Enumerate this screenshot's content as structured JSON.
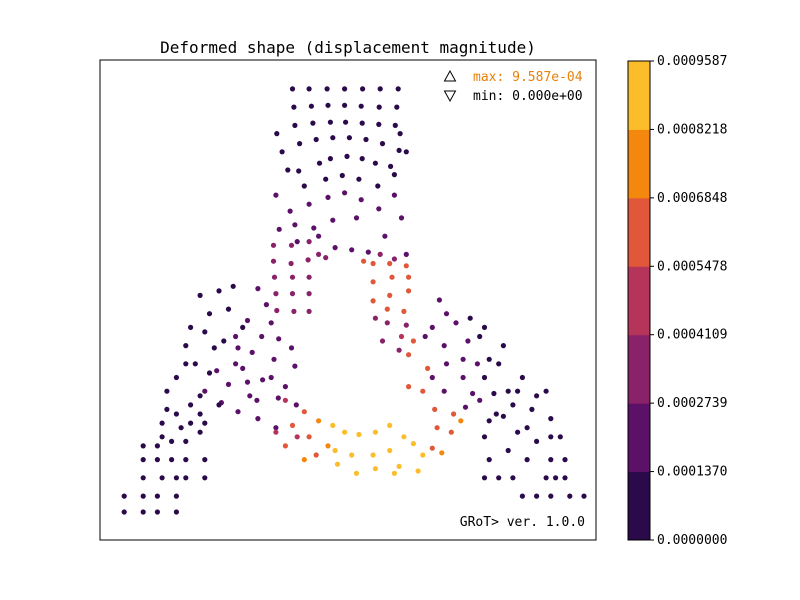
{
  "chart_data": {
    "type": "scatter",
    "title": "Deformed shape (displacement magnitude)",
    "xlabel": "",
    "ylabel": "",
    "xlim": [
      0,
      1
    ],
    "ylim": [
      0,
      1
    ],
    "grid": false,
    "legend": {
      "placement": "top-right",
      "max_label": "max: 9.587e-04",
      "min_label": "min: 0.000e+00",
      "max_marker": "triangle-up",
      "min_marker": "triangle-down",
      "max_color": "#e8800a",
      "min_color": "#000000"
    },
    "annotation": "GRoT> ver. 1.0.0",
    "colorbar": {
      "min": 0.0,
      "max": 0.0009587,
      "tick_labels": [
        "0.0000000",
        "0.0001370",
        "0.0002739",
        "0.0004109",
        "0.0005478",
        "0.0006848",
        "0.0008218",
        "0.0009587"
      ],
      "colors": [
        "#2a0a4a",
        "#5c1169",
        "#8a2269",
        "#b5355a",
        "#e0573a",
        "#f4870e",
        "#fbbd2a"
      ]
    },
    "layers": [
      {
        "mag": 0.0,
        "pts": [
          [
            0.385,
            0.963
          ],
          [
            0.42,
            0.963
          ],
          [
            0.458,
            0.963
          ],
          [
            0.495,
            0.963
          ],
          [
            0.533,
            0.963
          ],
          [
            0.57,
            0.963
          ],
          [
            0.608,
            0.963
          ]
        ]
      },
      {
        "mag": 2e-05,
        "pts": [
          [
            0.388,
            0.923
          ],
          [
            0.425,
            0.925
          ],
          [
            0.46,
            0.927
          ],
          [
            0.495,
            0.927
          ],
          [
            0.53,
            0.925
          ],
          [
            0.568,
            0.923
          ],
          [
            0.605,
            0.923
          ]
        ]
      },
      {
        "mag": 4e-05,
        "pts": [
          [
            0.39,
            0.883
          ],
          [
            0.428,
            0.888
          ],
          [
            0.465,
            0.89
          ],
          [
            0.497,
            0.89
          ],
          [
            0.532,
            0.888
          ],
          [
            0.567,
            0.885
          ],
          [
            0.602,
            0.883
          ]
        ]
      },
      {
        "mag": 7e-05,
        "pts": [
          [
            0.352,
            0.865
          ],
          [
            0.4,
            0.843
          ],
          [
            0.435,
            0.852
          ],
          [
            0.47,
            0.856
          ],
          [
            0.505,
            0.856
          ],
          [
            0.54,
            0.852
          ],
          [
            0.575,
            0.843
          ],
          [
            0.612,
            0.865
          ]
        ]
      },
      {
        "mag": 9e-05,
        "pts": [
          [
            0.61,
            0.828
          ],
          [
            0.363,
            0.825
          ],
          [
            0.398,
            0.783
          ],
          [
            0.442,
            0.8
          ],
          [
            0.465,
            0.81
          ],
          [
            0.5,
            0.815
          ],
          [
            0.532,
            0.81
          ],
          [
            0.56,
            0.8
          ],
          [
            0.592,
            0.793
          ],
          [
            0.625,
            0.825
          ]
        ]
      },
      {
        "mag": 0.00012,
        "pts": [
          [
            0.375,
            0.785
          ],
          [
            0.41,
            0.75
          ],
          [
            0.455,
            0.765
          ],
          [
            0.49,
            0.773
          ],
          [
            0.525,
            0.765
          ],
          [
            0.565,
            0.75
          ],
          [
            0.6,
            0.775
          ]
        ]
      },
      {
        "mag": 0.0002,
        "pts": [
          [
            0.35,
            0.73
          ],
          [
            0.38,
            0.695
          ],
          [
            0.42,
            0.71
          ],
          [
            0.46,
            0.725
          ],
          [
            0.495,
            0.735
          ],
          [
            0.53,
            0.72
          ],
          [
            0.567,
            0.7
          ],
          [
            0.6,
            0.73
          ],
          [
            0.39,
            0.665
          ],
          [
            0.43,
            0.658
          ],
          [
            0.47,
            0.675
          ],
          [
            0.52,
            0.68
          ]
        ]
      },
      {
        "mag": 0.00026,
        "pts": [
          [
            0.357,
            0.655
          ],
          [
            0.395,
            0.628
          ],
          [
            0.44,
            0.64
          ],
          [
            0.475,
            0.615
          ],
          [
            0.51,
            0.61
          ],
          [
            0.545,
            0.605
          ],
          [
            0.58,
            0.64
          ],
          [
            0.615,
            0.68
          ],
          [
            0.625,
            0.6
          ]
        ]
      },
      {
        "mag": 0.0004,
        "pts": [
          [
            0.345,
            0.62
          ],
          [
            0.383,
            0.62
          ],
          [
            0.42,
            0.628
          ],
          [
            0.44,
            0.6
          ],
          [
            0.57,
            0.6
          ],
          [
            0.6,
            0.59
          ],
          [
            0.345,
            0.585
          ],
          [
            0.382,
            0.58
          ],
          [
            0.418,
            0.588
          ],
          [
            0.455,
            0.593
          ],
          [
            0.347,
            0.55
          ],
          [
            0.385,
            0.55
          ],
          [
            0.42,
            0.55
          ],
          [
            0.35,
            0.514
          ],
          [
            0.385,
            0.514
          ],
          [
            0.42,
            0.514
          ],
          [
            0.352,
            0.477
          ],
          [
            0.388,
            0.475
          ],
          [
            0.42,
            0.475
          ]
        ]
      },
      {
        "mag": 0.00057,
        "pts": [
          [
            0.535,
            0.585
          ],
          [
            0.555,
            0.58
          ],
          [
            0.59,
            0.58
          ],
          [
            0.625,
            0.575
          ],
          [
            0.63,
            0.55
          ],
          [
            0.595,
            0.55
          ],
          [
            0.555,
            0.54
          ],
          [
            0.63,
            0.52
          ],
          [
            0.59,
            0.51
          ],
          [
            0.555,
            0.498
          ],
          [
            0.585,
            0.48
          ],
          [
            0.62,
            0.475
          ]
        ]
      },
      {
        "mag": 0.00033,
        "pts": [
          [
            0.585,
            0.45
          ],
          [
            0.625,
            0.445
          ],
          [
            0.56,
            0.46
          ],
          [
            0.61,
            0.39
          ],
          [
            0.575,
            0.41
          ]
        ]
      },
      {
        "mag": 0.00045,
        "pts": [
          [
            0.615,
            0.42
          ]
        ]
      },
      {
        "mag": 0.00022,
        "pts": [
          [
            0.312,
            0.525
          ],
          [
            0.33,
            0.49
          ],
          [
            0.29,
            0.455
          ],
          [
            0.34,
            0.45
          ],
          [
            0.265,
            0.42
          ],
          [
            0.32,
            0.42
          ],
          [
            0.356,
            0.415
          ],
          [
            0.383,
            0.395
          ],
          [
            0.3,
            0.385
          ],
          [
            0.346,
            0.37
          ],
          [
            0.39,
            0.355
          ],
          [
            0.34,
            0.33
          ],
          [
            0.37,
            0.31
          ],
          [
            0.28,
            0.35
          ],
          [
            0.322,
            0.325
          ],
          [
            0.355,
            0.285
          ],
          [
            0.393,
            0.27
          ],
          [
            0.295,
            0.29
          ],
          [
            0.27,
            0.395
          ],
          [
            0.312,
            0.24
          ],
          [
            0.35,
            0.22
          ]
        ]
      },
      {
        "mag": 0.00018,
        "pts": [
          [
            0.265,
            0.36
          ],
          [
            0.225,
            0.345
          ],
          [
            0.25,
            0.315
          ],
          [
            0.29,
            0.32
          ],
          [
            0.235,
            0.275
          ],
          [
            0.27,
            0.255
          ],
          [
            0.2,
            0.3
          ],
          [
            0.31,
            0.28
          ]
        ]
      },
      {
        "mag": 0.00047,
        "pts": [
          [
            0.37,
            0.28
          ],
          [
            0.35,
            0.21
          ],
          [
            0.395,
            0.2
          ]
        ]
      },
      {
        "mag": 0.00062,
        "pts": [
          [
            0.41,
            0.255
          ],
          [
            0.37,
            0.18
          ]
        ]
      },
      {
        "mag": 0.0006,
        "pts": [
          [
            0.385,
            0.225
          ],
          [
            0.42,
            0.2
          ],
          [
            0.435,
            0.16
          ],
          [
            0.725,
            0.25
          ],
          [
            0.72,
            0.21
          ],
          [
            0.68,
            0.175
          ]
        ]
      },
      {
        "mag": 0.00075,
        "pts": [
          [
            0.44,
            0.235
          ],
          [
            0.46,
            0.18
          ],
          [
            0.41,
            0.15
          ],
          [
            0.7,
            0.165
          ],
          [
            0.74,
            0.235
          ]
        ]
      },
      {
        "mag": 0.00093,
        "pts": [
          [
            0.47,
            0.225
          ],
          [
            0.495,
            0.21
          ],
          [
            0.525,
            0.205
          ],
          [
            0.56,
            0.21
          ],
          [
            0.59,
            0.225
          ],
          [
            0.62,
            0.2
          ],
          [
            0.64,
            0.185
          ],
          [
            0.66,
            0.16
          ],
          [
            0.65,
            0.125
          ],
          [
            0.6,
            0.12
          ],
          [
            0.56,
            0.13
          ],
          [
            0.52,
            0.12
          ],
          [
            0.48,
            0.14
          ],
          [
            0.475,
            0.17
          ],
          [
            0.51,
            0.16
          ],
          [
            0.555,
            0.16
          ],
          [
            0.59,
            0.17
          ],
          [
            0.61,
            0.135
          ]
        ]
      },
      {
        "mag": 0.00055,
        "pts": [
          [
            0.63,
            0.38
          ],
          [
            0.64,
            0.41
          ],
          [
            0.67,
            0.35
          ],
          [
            0.66,
            0.3
          ],
          [
            0.63,
            0.31
          ],
          [
            0.685,
            0.26
          ],
          [
            0.69,
            0.22
          ]
        ]
      },
      {
        "mag": 0.00025,
        "pts": [
          [
            0.665,
            0.42
          ],
          [
            0.705,
            0.4
          ],
          [
            0.71,
            0.36
          ],
          [
            0.745,
            0.33
          ],
          [
            0.745,
            0.37
          ],
          [
            0.765,
            0.295
          ],
          [
            0.75,
            0.265
          ],
          [
            0.705,
            0.3
          ],
          [
            0.68,
            0.33
          ],
          [
            0.71,
            0.47
          ],
          [
            0.68,
            0.44
          ],
          [
            0.755,
            0.41
          ],
          [
            0.775,
            0.36
          ],
          [
            0.73,
            0.45
          ],
          [
            0.695,
            0.5
          ],
          [
            0.78,
            0.28
          ]
        ]
      },
      {
        "mag": 0.0001,
        "pts": [
          [
            0.79,
            0.33
          ],
          [
            0.8,
            0.37
          ],
          [
            0.815,
            0.25
          ],
          [
            0.81,
            0.295
          ],
          [
            0.78,
            0.42
          ],
          [
            0.79,
            0.44
          ],
          [
            0.83,
            0.4
          ],
          [
            0.76,
            0.46
          ],
          [
            0.82,
            0.36
          ],
          [
            0.84,
            0.3
          ]
        ]
      },
      {
        "mag": 4e-05,
        "pts": [
          [
            0.8,
            0.235
          ],
          [
            0.83,
            0.245
          ],
          [
            0.85,
            0.27
          ],
          [
            0.86,
            0.3
          ],
          [
            0.87,
            0.33
          ],
          [
            0.88,
            0.22
          ],
          [
            0.89,
            0.26
          ],
          [
            0.9,
            0.29
          ],
          [
            0.92,
            0.3
          ],
          [
            0.93,
            0.24
          ],
          [
            0.95,
            0.2
          ],
          [
            0.96,
            0.15
          ],
          [
            0.93,
            0.15
          ],
          [
            0.88,
            0.15
          ],
          [
            0.84,
            0.17
          ],
          [
            0.79,
            0.2
          ],
          [
            0.8,
            0.15
          ],
          [
            0.85,
            0.11
          ],
          [
            0.87,
            0.07
          ],
          [
            0.92,
            0.11
          ],
          [
            0.97,
            0.07
          ],
          [
            1.0,
            0.07
          ],
          [
            0.93,
            0.07
          ],
          [
            0.9,
            0.07
          ]
        ]
      },
      {
        "mag": 6e-05,
        "pts": [
          [
            0.79,
            0.11
          ],
          [
            0.82,
            0.11
          ],
          [
            0.86,
            0.21
          ],
          [
            0.9,
            0.19
          ],
          [
            0.93,
            0.2
          ],
          [
            0.94,
            0.11
          ],
          [
            0.96,
            0.11
          ]
        ]
      },
      {
        "mag": 0.00012,
        "pts": [
          [
            0.22,
            0.395
          ],
          [
            0.24,
            0.41
          ],
          [
            0.2,
            0.43
          ],
          [
            0.17,
            0.44
          ],
          [
            0.16,
            0.4
          ],
          [
            0.18,
            0.36
          ],
          [
            0.21,
            0.34
          ],
          [
            0.25,
            0.48
          ],
          [
            0.21,
            0.47
          ],
          [
            0.19,
            0.51
          ],
          [
            0.23,
            0.52
          ],
          [
            0.26,
            0.53
          ],
          [
            0.28,
            0.44
          ]
        ]
      },
      {
        "mag": 4e-05,
        "pts": [
          [
            0.12,
            0.3
          ],
          [
            0.14,
            0.33
          ],
          [
            0.16,
            0.36
          ],
          [
            0.11,
            0.23
          ],
          [
            0.14,
            0.25
          ],
          [
            0.17,
            0.27
          ],
          [
            0.19,
            0.29
          ],
          [
            0.07,
            0.18
          ],
          [
            0.1,
            0.18
          ],
          [
            0.13,
            0.19
          ],
          [
            0.16,
            0.19
          ],
          [
            0.19,
            0.21
          ],
          [
            0.07,
            0.15
          ],
          [
            0.1,
            0.15
          ],
          [
            0.13,
            0.15
          ],
          [
            0.16,
            0.15
          ],
          [
            0.2,
            0.15
          ],
          [
            0.07,
            0.11
          ],
          [
            0.11,
            0.11
          ],
          [
            0.14,
            0.11
          ],
          [
            0.16,
            0.11
          ],
          [
            0.2,
            0.11
          ],
          [
            0.03,
            0.07
          ],
          [
            0.07,
            0.07
          ],
          [
            0.1,
            0.07
          ],
          [
            0.14,
            0.07
          ],
          [
            0.03,
            0.035
          ],
          [
            0.07,
            0.035
          ],
          [
            0.1,
            0.035
          ],
          [
            0.14,
            0.035
          ]
        ]
      },
      {
        "mag": 2e-05,
        "pts": [
          [
            0.12,
            0.26
          ],
          [
            0.15,
            0.22
          ],
          [
            0.11,
            0.2
          ],
          [
            0.17,
            0.23
          ],
          [
            0.2,
            0.23
          ],
          [
            0.19,
            0.25
          ],
          [
            0.23,
            0.27
          ]
        ]
      }
    ]
  }
}
